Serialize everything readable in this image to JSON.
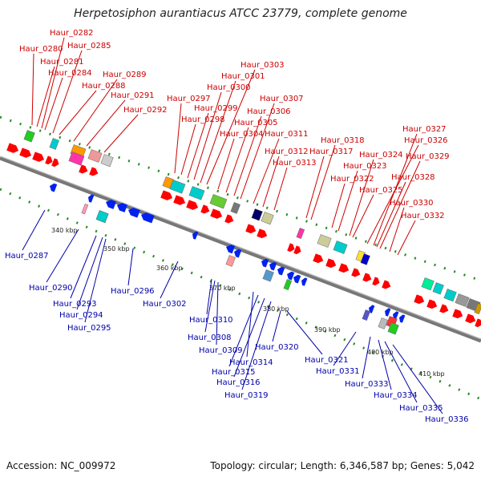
{
  "title": "Herpetosiphon aurantiacus ATCC 23779, complete genome",
  "accession_text": "Accession: NC_009972",
  "summary_text": "Topology: circular; Length: 6,346,587 bp; Genes: 5,042",
  "colors": {
    "forward_label": "#cc0000",
    "reverse_label": "#0000aa",
    "backbone": "#888888",
    "tick": "#2a8a2a"
  },
  "kbp_markers": [
    "340 kbp",
    "350 kbp",
    "360 kbp",
    "370 kbp",
    "380 kbp",
    "390 kbp",
    "400 kbp",
    "410 kbp"
  ],
  "forward_genes": [
    "Haur_0280",
    "Haur_0281",
    "Haur_0282",
    "Haur_0284",
    "Haur_0285",
    "Haur_0288",
    "Haur_0289",
    "Haur_0291",
    "Haur_0292",
    "Haur_0297",
    "Haur_0298",
    "Haur_0299",
    "Haur_0300",
    "Haur_0301",
    "Haur_0303",
    "Haur_0304",
    "Haur_0305",
    "Haur_0306",
    "Haur_0307",
    "Haur_0311",
    "Haur_0312",
    "Haur_0313",
    "Haur_0317",
    "Haur_0318",
    "Haur_0322",
    "Haur_0323",
    "Haur_0324",
    "Haur_0325",
    "Haur_0326",
    "Haur_0327",
    "Haur_0328",
    "Haur_0329",
    "Haur_0330",
    "Haur_0332"
  ],
  "reverse_genes": [
    "Haur_0287",
    "Haur_0290",
    "Haur_0293",
    "Haur_0294",
    "Haur_0295",
    "Haur_0296",
    "Haur_0302",
    "Haur_0308",
    "Haur_0309",
    "Haur_0310",
    "Haur_0314",
    "Haur_0315",
    "Haur_0316",
    "Haur_0319",
    "Haur_0320",
    "Haur_0321",
    "Haur_0331",
    "Haur_0333",
    "Haur_0334",
    "Haur_0335",
    "Haur_0336"
  ]
}
